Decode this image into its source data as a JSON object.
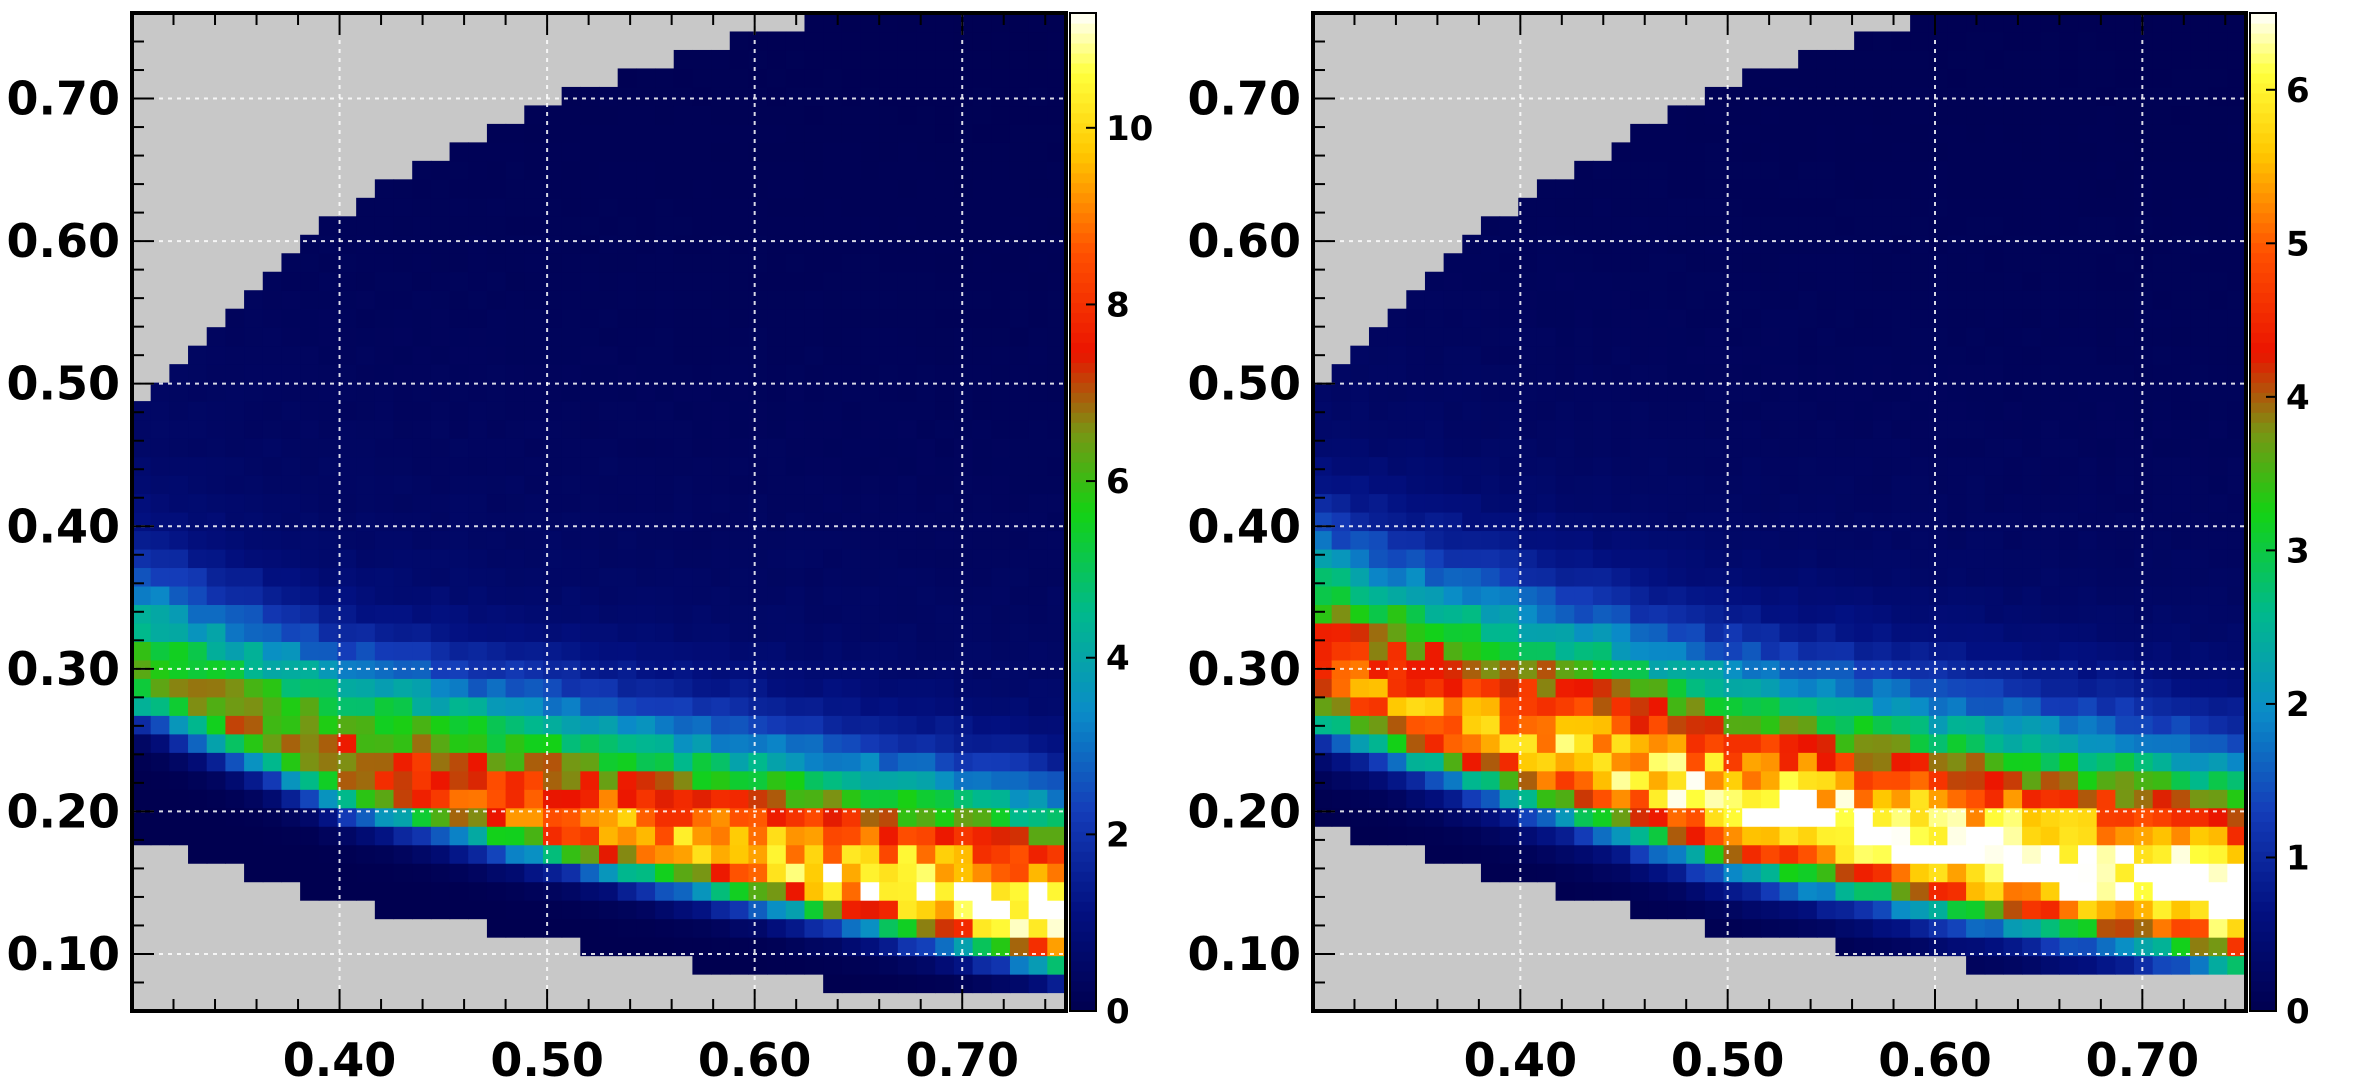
{
  "chart_data": [
    {
      "type": "heatmap",
      "title": "",
      "xlabel": "",
      "ylabel": "",
      "xlim": [
        0.3,
        0.75
      ],
      "ylim": [
        0.06,
        0.76
      ],
      "x_ticks": [
        "0.40",
        "0.50",
        "0.60",
        "0.70"
      ],
      "y_ticks": [
        "0.10",
        "0.20",
        "0.30",
        "0.40",
        "0.50",
        "0.60",
        "0.70"
      ],
      "grid": true,
      "empty_color": "#c8c8c8",
      "colorbar": {
        "min": 0,
        "max": 11.3,
        "ticks": [
          "0",
          "2",
          "4",
          "6",
          "8",
          "10"
        ]
      },
      "field": {
        "bins_x": 50,
        "bins_y": 54,
        "ridge": [
          [
            0.3,
            0.29
          ],
          [
            0.4,
            0.225
          ],
          [
            0.5,
            0.19
          ],
          [
            0.6,
            0.16
          ],
          [
            0.7,
            0.13
          ],
          [
            0.75,
            0.115
          ]
        ],
        "ridge_peak": [
          [
            0.3,
            5.0
          ],
          [
            0.4,
            6.5
          ],
          [
            0.5,
            8.0
          ],
          [
            0.6,
            9.0
          ],
          [
            0.7,
            10.5
          ],
          [
            0.75,
            11.0
          ]
        ],
        "width_up": 0.055,
        "width_down": 0.018,
        "upper_tail": 1.0,
        "upper_boundary": [
          [
            0.3,
            0.48
          ],
          [
            0.4,
            0.62
          ],
          [
            0.5,
            0.7
          ],
          [
            0.6,
            0.745
          ],
          [
            0.64,
            0.76
          ]
        ],
        "lower_boundary": [
          [
            0.3,
            0.185
          ],
          [
            0.4,
            0.135
          ],
          [
            0.5,
            0.11
          ],
          [
            0.6,
            0.085
          ],
          [
            0.7,
            0.07
          ],
          [
            0.75,
            0.07
          ]
        ]
      }
    },
    {
      "type": "heatmap",
      "title": "",
      "xlabel": "",
      "ylabel": "",
      "xlim": [
        0.3,
        0.75
      ],
      "ylim": [
        0.06,
        0.76
      ],
      "x_ticks": [
        "0.40",
        "0.50",
        "0.60",
        "0.70"
      ],
      "y_ticks": [
        "0.10",
        "0.20",
        "0.30",
        "0.40",
        "0.50",
        "0.60",
        "0.70"
      ],
      "grid": true,
      "empty_color": "#c8c8c8",
      "colorbar": {
        "min": 0,
        "max": 6.5,
        "ticks": [
          "0",
          "1",
          "2",
          "3",
          "4",
          "5",
          "6"
        ]
      },
      "field": {
        "bins_x": 50,
        "bins_y": 54,
        "ridge": [
          [
            0.3,
            0.29
          ],
          [
            0.4,
            0.24
          ],
          [
            0.5,
            0.195
          ],
          [
            0.6,
            0.165
          ],
          [
            0.7,
            0.14
          ],
          [
            0.75,
            0.125
          ]
        ],
        "ridge_peak": [
          [
            0.3,
            4.2
          ],
          [
            0.4,
            5.2
          ],
          [
            0.5,
            5.8
          ],
          [
            0.6,
            6.1
          ],
          [
            0.7,
            6.3
          ],
          [
            0.75,
            6.4
          ]
        ],
        "width_up": 0.065,
        "width_down": 0.025,
        "upper_tail": 0.6,
        "upper_boundary": [
          [
            0.3,
            0.5
          ],
          [
            0.4,
            0.63
          ],
          [
            0.5,
            0.71
          ],
          [
            0.6,
            0.76
          ]
        ],
        "lower_boundary": [
          [
            0.3,
            0.19
          ],
          [
            0.4,
            0.15
          ],
          [
            0.5,
            0.115
          ],
          [
            0.6,
            0.095
          ],
          [
            0.7,
            0.08
          ],
          [
            0.75,
            0.08
          ]
        ]
      }
    }
  ]
}
